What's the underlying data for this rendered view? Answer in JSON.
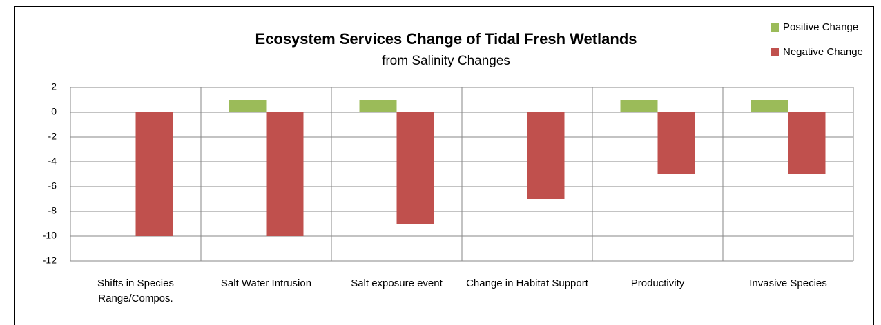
{
  "chart_data": {
    "type": "bar",
    "title": "Ecosystem Services Change of Tidal Fresh Wetlands",
    "subtitle": "from Salinity Changes",
    "categories": [
      "Shifts in Species Range/Compos.",
      "Salt Water Intrusion",
      "Salt exposure event",
      "Change in Habitat Support",
      "Productivity",
      "Invasive Species"
    ],
    "series": [
      {
        "name": "Positive Change",
        "color": "#9bbb59",
        "values": [
          0,
          1,
          1,
          0,
          1,
          1
        ]
      },
      {
        "name": "Negative Change",
        "color": "#c0504d",
        "values": [
          -10,
          -10,
          -9,
          -7,
          -5,
          -5
        ]
      }
    ],
    "ylim": [
      -12,
      2
    ],
    "yticks": [
      -12,
      -10,
      -8,
      -6,
      -4,
      -2,
      0,
      2
    ],
    "grid": true,
    "legend": "top-right"
  }
}
